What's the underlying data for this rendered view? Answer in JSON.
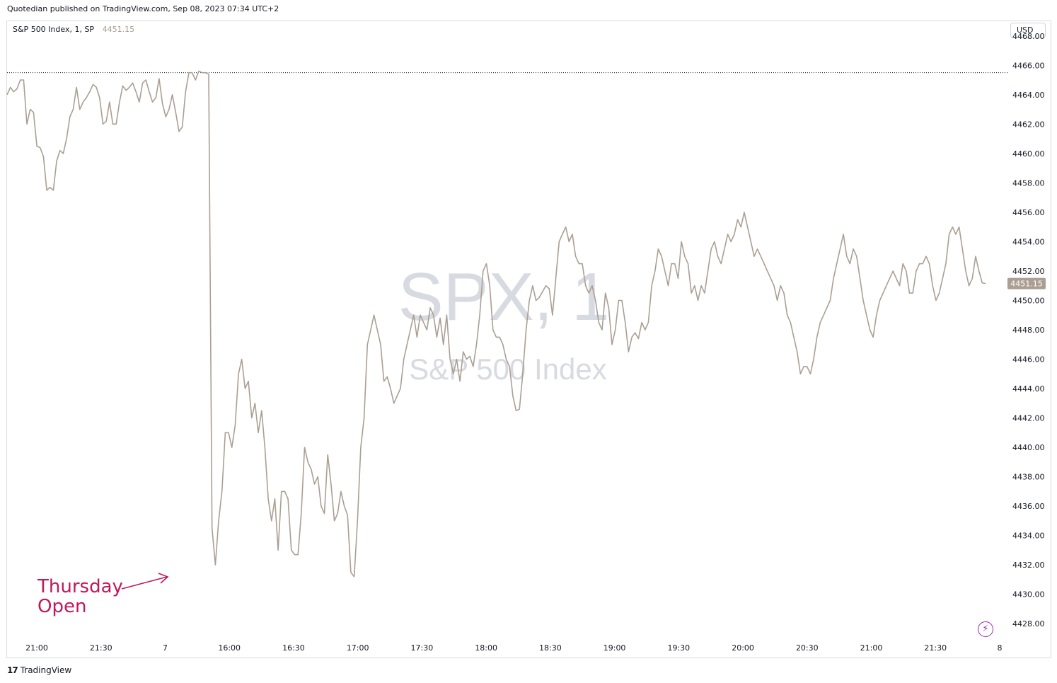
{
  "header": {
    "published": "Quotedian published on TradingView.com, Sep 08, 2023 07:34 UTC+2"
  },
  "legend": {
    "symbol": "S&P 500 Index, 1, SP",
    "last_price": "4451.15"
  },
  "currency_button": "USD",
  "watermark": {
    "ticker": "SPX, 1",
    "name": "S&P 500 Index"
  },
  "annotation": {
    "line1": "Thursday",
    "line2": "Open",
    "color": "#c2185b"
  },
  "footer": {
    "brand": "TradingView",
    "logo": "17"
  },
  "icons": {
    "lightning": "lightning-icon"
  },
  "colors": {
    "line": "#ab9f93",
    "price_tag_bg": "#ab9f93",
    "axis_text": "#131722"
  },
  "chart_data": {
    "type": "line",
    "title": "S&P 500 Index, 1, SP",
    "ylabel": "",
    "xlabel": "",
    "ylim": [
      4427,
      4469
    ],
    "y_ticks": [
      4428,
      4430,
      4432,
      4434,
      4436,
      4438,
      4440,
      4442,
      4444,
      4446,
      4448,
      4450,
      4452,
      4454,
      4456,
      4458,
      4460,
      4462,
      4464,
      4466,
      4468
    ],
    "x_ticks": [
      "21:00",
      "21:30",
      "7",
      "16:00",
      "16:30",
      "17:00",
      "17:30",
      "18:00",
      "18:30",
      "19:00",
      "19:30",
      "20:00",
      "20:30",
      "21:00",
      "21:30",
      "8"
    ],
    "last_value_label": "4451.15",
    "reference_line": 4465.5,
    "grid": false,
    "series": [
      {
        "values": [
          4464,
          4464.5,
          4464.2,
          4464.4,
          4465,
          4465,
          4462,
          4463,
          4462.8,
          4460.5,
          4460.4,
          4459.8,
          4457.5,
          4457.7,
          4457.5,
          4459.5,
          4460.2,
          4460,
          4461,
          4462.5,
          4463,
          4464.5,
          4463,
          4463.5,
          4463.8,
          4464.2,
          4464.7,
          4464.5,
          4463.8,
          4462,
          4462.2,
          4463.5,
          4462,
          4462,
          4463.5,
          4464.6,
          4464.3,
          4464.5,
          4464.8,
          4464.2,
          4463.5,
          4464.8,
          4465,
          4464.2,
          4463.5,
          4463.8,
          4465.1,
          4463.4,
          4462.5,
          4463,
          4464,
          4462.8,
          4461.5,
          4461.8,
          4464.2,
          4465.5,
          4465.5,
          4465,
          4465.6,
          4465.5,
          4465.5,
          4465.4,
          4434.5,
          4432,
          4435,
          4437,
          4441,
          4441,
          4440,
          4441.5,
          4445,
          4446,
          4444,
          4444.5,
          4442,
          4443,
          4441,
          4442.5,
          4440,
          4436.5,
          4435,
          4436.5,
          4433,
          4437,
          4437,
          4436.5,
          4433,
          4432.7,
          4432.7,
          4435.5,
          4440,
          4439,
          4438.5,
          4437.5,
          4438,
          4436,
          4435.5,
          4439.5,
          4437.5,
          4435,
          4435.5,
          4437,
          4436,
          4435.4,
          4431.5,
          4431.2,
          4435,
          4440,
          4442,
          4447,
          4448,
          4449,
          4448,
          4447,
          4444.5,
          4444.8,
          4444,
          4443,
          4443.5,
          4444,
          4446,
          4447,
          4448,
          4449,
          4447.5,
          4449,
          4448.5,
          4448,
          4449.5,
          4449,
          4447.5,
          4448.8,
          4447,
          4449,
          4446,
          4445,
          4446,
          4444.5,
          4446.5,
          4446,
          4446.2,
          4445.5,
          4447,
          4449,
          4452,
          4452.5,
          4451,
          4448,
          4447.5,
          4447.5,
          4447,
          4446,
          4445.5,
          4443.5,
          4442.5,
          4442.6,
          4445,
          4448,
          4450,
          4451,
          4450,
          4450.2,
          4450.6,
          4451,
          4450.8,
          4449,
          4451.5,
          4454,
          4454.5,
          4455,
          4454,
          4454.5,
          4453,
          4452.5,
          4452.5,
          4451,
          4450.5,
          4451,
          4450,
          4448.5,
          4448,
          4450.5,
          4449.5,
          4447,
          4448,
          4450,
          4450,
          4448.5,
          4446.5,
          4447.5,
          4447.8,
          4447.4,
          4448.5,
          4448,
          4448.5,
          4451,
          4452,
          4453.5,
          4453,
          4452,
          4451,
          4452.5,
          4452.5,
          4451.5,
          4454,
          4453,
          4452.5,
          4450.5,
          4451,
          4450,
          4451,
          4450.5,
          4452,
          4453.5,
          4454,
          4453,
          4452.5,
          4453.5,
          4454.5,
          4454,
          4454.5,
          4455.5,
          4455,
          4456,
          4455,
          4454,
          4453,
          4453.5,
          4453,
          4452.5,
          4452,
          4451.5,
          4451,
          4450,
          4451,
          4450.5,
          4449,
          4448.5,
          4447.5,
          4446.5,
          4445,
          4445.5,
          4445.5,
          4445,
          4446,
          4447.5,
          4448.5,
          4449,
          4449.5,
          4450,
          4451.5,
          4452.5,
          4453.5,
          4454.5,
          4453,
          4452.5,
          4453.5,
          4453,
          4451.5,
          4450,
          4449,
          4448,
          4447.5,
          4449,
          4450,
          4450.5,
          4451,
          4451.5,
          4452,
          4451.5,
          4451,
          4452.5,
          4452,
          4450.5,
          4450.5,
          4452,
          4452.5,
          4452.5,
          4453,
          4452.5,
          4451,
          4450,
          4450.5,
          4451.5,
          4452.5,
          4454.5,
          4455,
          4454.5,
          4455,
          4453.5,
          4452,
          4451,
          4451.5,
          4453,
          4452,
          4451.2,
          4451.15
        ]
      }
    ]
  }
}
